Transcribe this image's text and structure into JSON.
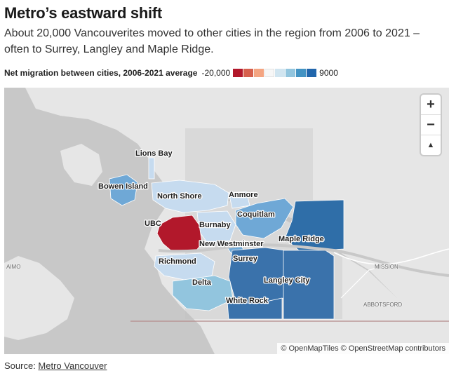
{
  "title": "Metro’s eastward shift",
  "subtitle": "About 20,000 Vancouverites moved to other cities in the region from 2006 to 2021 – often to Surrey, Langley and Maple Ridge.",
  "legend": {
    "title": "Net migration between cities, 2006-2021 average",
    "min_label": "-20,000",
    "max_label": "9000",
    "colors": [
      "#b2182b",
      "#d6604d",
      "#f4a582",
      "#f7f7f7",
      "#d1e5f0",
      "#92c5de",
      "#4393c3",
      "#2166ac"
    ]
  },
  "map": {
    "cities": {
      "lions_bay": "Lions Bay",
      "bowen_island": "Bowen Island",
      "north_shore": "North Shore",
      "anmore": "Anmore",
      "coquitlam": "Coquitlam",
      "ubc": "UBC",
      "burnaby": "Burnaby",
      "new_westminster": "New Westminster",
      "maple_ridge": "Maple Ridge",
      "richmond": "Richmond",
      "surrey": "Surrey",
      "langley_city": "Langley City",
      "delta": "Delta",
      "white_rock": "White Rock"
    },
    "places": {
      "mission": "MISSION",
      "abbotsford": "ABBOTSFORD",
      "naimo": "AIMO"
    },
    "zoom_in": "+",
    "zoom_out": "−",
    "compass": "▲",
    "attribution": "© OpenMapTiles © OpenStreetMap contributors"
  },
  "source": {
    "label": "Source: ",
    "link": "Metro Vancouver"
  }
}
